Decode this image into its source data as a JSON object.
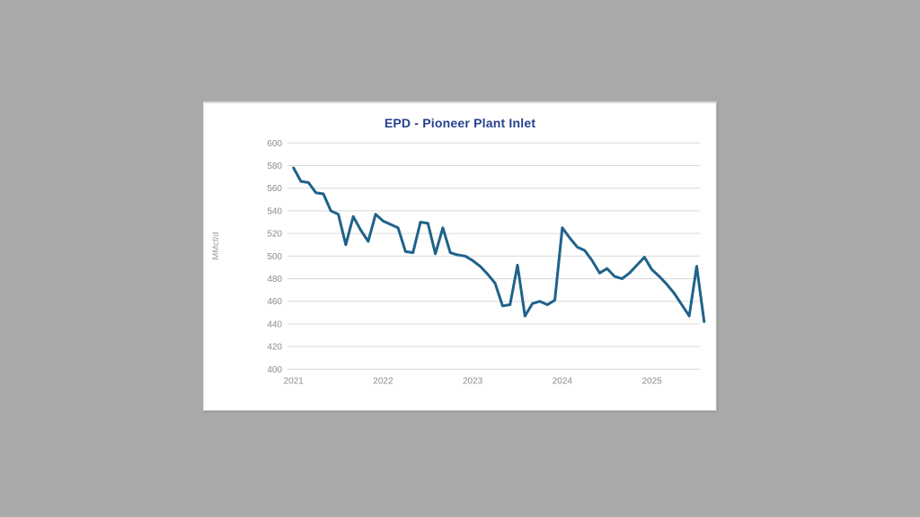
{
  "card": {
    "title": "EPD - Pioneer Plant Inlet"
  },
  "colors": {
    "page_background": "#a9a9a9",
    "card_background": "#ffffff",
    "title_text": "#26408e",
    "axis_text": "#8c8c8c",
    "gridline": "#d9d9d9",
    "series_line": "#1f628a"
  },
  "chart_data": {
    "type": "line",
    "title": "EPD - Pioneer Plant Inlet",
    "xlabel": "",
    "ylabel": "MMcf/d",
    "ylim": [
      400,
      600
    ],
    "ytick_step": 20,
    "grid": true,
    "legend_position": "none",
    "x_start": "2021-01",
    "x_freq": "monthly",
    "xtick_labels": [
      "2021",
      "2022",
      "2023",
      "2024",
      "2025"
    ],
    "series": [
      {
        "name": "EPD - Pioneer Plant Inlet",
        "values": [
          578,
          566,
          565,
          556,
          555,
          540,
          537,
          510,
          535,
          523,
          513,
          537,
          531,
          528,
          525,
          504,
          503,
          530,
          529,
          502,
          525,
          503,
          501,
          500,
          496,
          491,
          484,
          476,
          456,
          457,
          492,
          447,
          458,
          460,
          457,
          461,
          525,
          516,
          508,
          505,
          496,
          485,
          489,
          482,
          480,
          485,
          492,
          499,
          488,
          482,
          475,
          467,
          457,
          447,
          491,
          442
        ]
      }
    ]
  }
}
